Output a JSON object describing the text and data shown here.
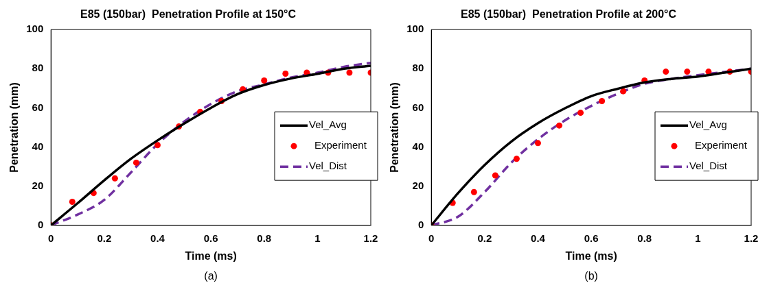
{
  "chart_data": [
    {
      "type": "line",
      "title": "E85 (150bar)  Penetration Profile at 150°C",
      "xlabel": "Time (ms)",
      "ylabel": "Penetration (mm)",
      "xlim": [
        0,
        1.2
      ],
      "xticks": [
        0,
        0.2,
        0.4,
        0.6,
        0.8,
        1,
        1.2
      ],
      "ylim": [
        0,
        100
      ],
      "yticks": [
        0,
        20,
        40,
        60,
        80,
        100
      ],
      "grid": false,
      "legend": "right",
      "annotations": [
        "(a)"
      ],
      "series": [
        {
          "name": "Vel_Avg",
          "type": "line",
          "color": "#000000",
          "line_style": "solid",
          "x": [
            0,
            0.1,
            0.2,
            0.3,
            0.4,
            0.5,
            0.6,
            0.7,
            0.8,
            0.9,
            1,
            1.1,
            1.2
          ],
          "values": [
            0,
            11.3,
            23,
            34,
            43.4,
            52,
            60,
            67,
            71.7,
            75,
            77.4,
            80,
            81.5
          ]
        },
        {
          "name": "Experiment",
          "type": "scatter",
          "marker": "circle",
          "color": "#ff0000",
          "x": [
            0,
            0.08,
            0.16,
            0.24,
            0.32,
            0.4,
            0.48,
            0.56,
            0.64,
            0.72,
            0.8,
            0.88,
            0.96,
            1.04,
            1.12,
            1.2
          ],
          "values": [
            0,
            12,
            16.5,
            24,
            32,
            41,
            50.5,
            58,
            63.5,
            69.5,
            74,
            77.5,
            78,
            78,
            78,
            78
          ]
        },
        {
          "name": "Vel_Dist",
          "type": "line",
          "color": "#7030a0",
          "line_style": "dashed",
          "x": [
            0,
            0.1,
            0.2,
            0.3,
            0.4,
            0.5,
            0.6,
            0.7,
            0.8,
            0.9,
            1,
            1.1,
            1.2
          ],
          "values": [
            0,
            5.5,
            13,
            27,
            41.5,
            53,
            62,
            68.5,
            72,
            75.5,
            78,
            81,
            83
          ]
        }
      ]
    },
    {
      "type": "line",
      "title": "E85 (150bar)  Penetration Profile at 200°C",
      "xlabel": "Time (ms)",
      "ylabel": "Penetration (mm)",
      "xlim": [
        0,
        1.2
      ],
      "xticks": [
        0,
        0.2,
        0.4,
        0.6,
        0.8,
        1,
        1.2
      ],
      "ylim": [
        0,
        100
      ],
      "yticks": [
        0,
        20,
        40,
        60,
        80,
        100
      ],
      "grid": false,
      "legend": "right",
      "annotations": [
        "(b)"
      ],
      "series": [
        {
          "name": "Vel_Avg",
          "type": "line",
          "color": "#000000",
          "line_style": "solid",
          "x": [
            0,
            0.1,
            0.2,
            0.3,
            0.4,
            0.5,
            0.6,
            0.7,
            0.8,
            0.9,
            1,
            1.1,
            1.2
          ],
          "values": [
            0,
            16.4,
            30.8,
            42.8,
            52.2,
            59.7,
            66,
            69.8,
            73,
            74.8,
            76,
            78,
            80
          ]
        },
        {
          "name": "Experiment",
          "type": "scatter",
          "marker": "circle",
          "color": "#ff0000",
          "x": [
            0,
            0.08,
            0.16,
            0.24,
            0.32,
            0.4,
            0.48,
            0.56,
            0.64,
            0.72,
            0.8,
            0.88,
            0.96,
            1.04,
            1.12,
            1.2
          ],
          "values": [
            0,
            11.5,
            17,
            25.5,
            34,
            42,
            51,
            57.5,
            63.5,
            68.5,
            74,
            78.5,
            78.5,
            78.5,
            78.5,
            78.5
          ]
        },
        {
          "name": "Vel_Dist",
          "type": "line",
          "color": "#7030a0",
          "line_style": "dashed",
          "x": [
            0,
            0.1,
            0.2,
            0.3,
            0.4,
            0.5,
            0.6,
            0.7,
            0.8,
            0.9,
            1,
            1.1,
            1.2
          ],
          "values": [
            0,
            4.4,
            17,
            32,
            44,
            53.5,
            61,
            67.3,
            72.3,
            74.8,
            76.7,
            78.4,
            80
          ]
        }
      ]
    }
  ]
}
